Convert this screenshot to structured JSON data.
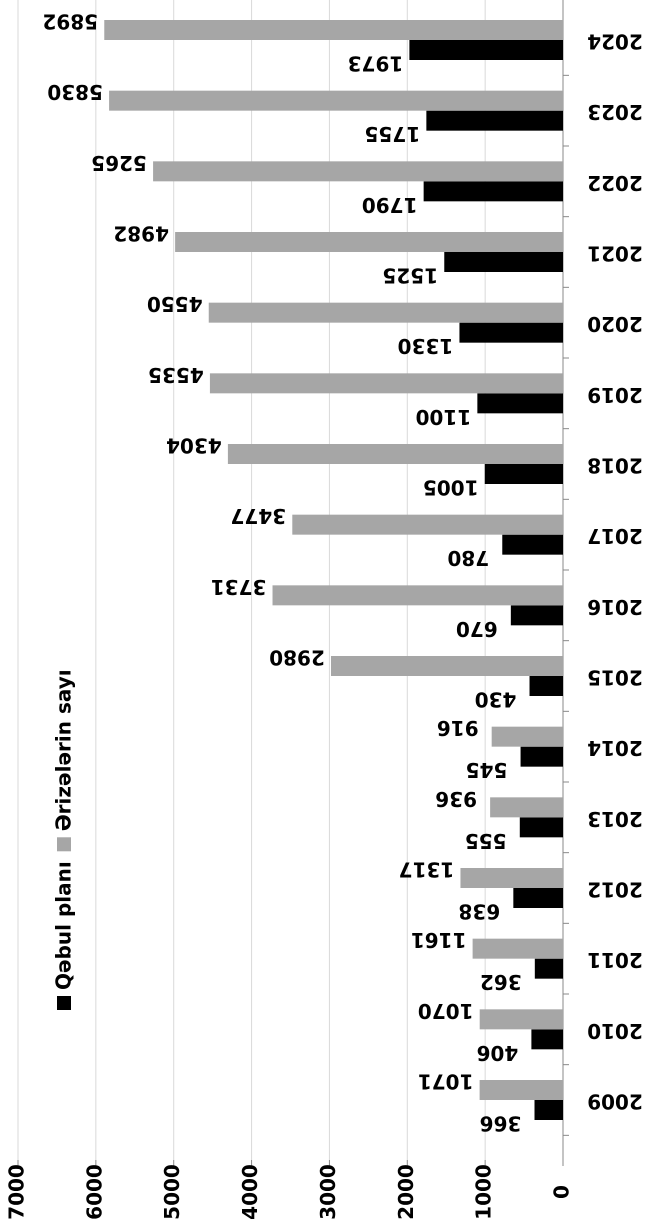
{
  "chart_data": {
    "type": "bar",
    "orientation": "rotated",
    "categories": [
      "2009",
      "2010",
      "2011",
      "2012",
      "2013",
      "2014",
      "2015",
      "2016",
      "2017",
      "2018",
      "2019",
      "2020",
      "2021",
      "2022",
      "2023",
      "2024"
    ],
    "series": [
      {
        "name": "Qəbul planı",
        "color": "#000000",
        "values": [
          366,
          406,
          362,
          638,
          555,
          545,
          430,
          670,
          780,
          1005,
          1100,
          1330,
          1525,
          1790,
          1755,
          1973
        ]
      },
      {
        "name": "Ərizələrin sayı",
        "color": "#a6a6a6",
        "values": [
          1071,
          1070,
          1161,
          1317,
          936,
          916,
          2980,
          3731,
          3477,
          4304,
          4535,
          4550,
          4982,
          5265,
          5830,
          5892
        ]
      }
    ],
    "ylim": [
      0,
      7000
    ],
    "yticks": [
      0,
      1000,
      2000,
      3000,
      4000,
      5000,
      6000,
      7000
    ],
    "grid": true
  }
}
